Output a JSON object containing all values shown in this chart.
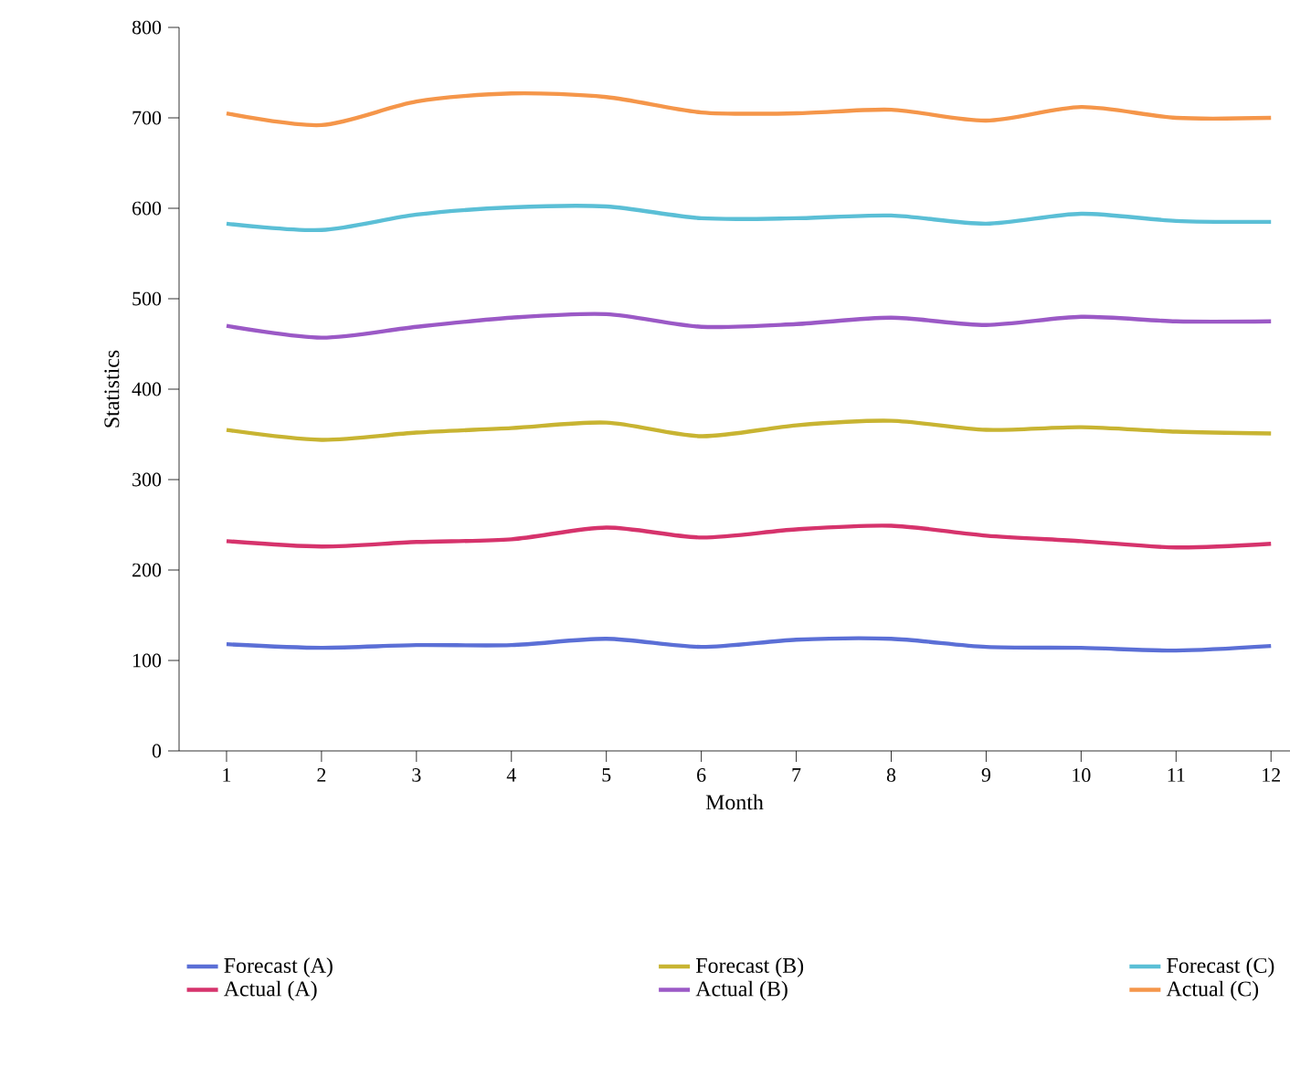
{
  "chart_data": {
    "type": "line",
    "xlabel": "Month",
    "ylabel": "Statistics",
    "x": [
      1,
      2,
      3,
      4,
      5,
      6,
      7,
      8,
      9,
      10,
      11,
      12
    ],
    "xlim": [
      0.5,
      12.2
    ],
    "xticks": [
      1,
      2,
      3,
      4,
      5,
      6,
      7,
      8,
      9,
      10,
      11,
      12
    ],
    "ylim": [
      0,
      800
    ],
    "yticks": [
      0,
      100,
      200,
      300,
      400,
      500,
      600,
      700,
      800
    ],
    "grid": false,
    "legend": "bottom",
    "marker": "none",
    "line_style": "solid",
    "series": [
      {
        "name": "Forecast (A)",
        "color": "#5b6fd6",
        "values": [
          118,
          114,
          117,
          117,
          124,
          115,
          123,
          124,
          115,
          114,
          111,
          116
        ]
      },
      {
        "name": "Actual (A)",
        "color": "#d6336c",
        "values": [
          232,
          226,
          231,
          234,
          247,
          236,
          245,
          249,
          238,
          232,
          225,
          229
        ]
      },
      {
        "name": "Forecast (B)",
        "color": "#c8b432",
        "values": [
          355,
          344,
          352,
          357,
          363,
          348,
          360,
          365,
          355,
          358,
          353,
          351
        ]
      },
      {
        "name": "Actual (B)",
        "color": "#9b59c6",
        "values": [
          470,
          457,
          469,
          479,
          483,
          469,
          472,
          479,
          471,
          480,
          475,
          475
        ]
      },
      {
        "name": "Forecast (C)",
        "color": "#5bbfd6",
        "values": [
          583,
          576,
          593,
          601,
          602,
          589,
          589,
          592,
          583,
          594,
          586,
          585
        ]
      },
      {
        "name": "Actual (C)",
        "color": "#f5964a",
        "values": [
          705,
          692,
          718,
          727,
          723,
          706,
          705,
          709,
          697,
          712,
          700,
          700
        ]
      }
    ]
  }
}
